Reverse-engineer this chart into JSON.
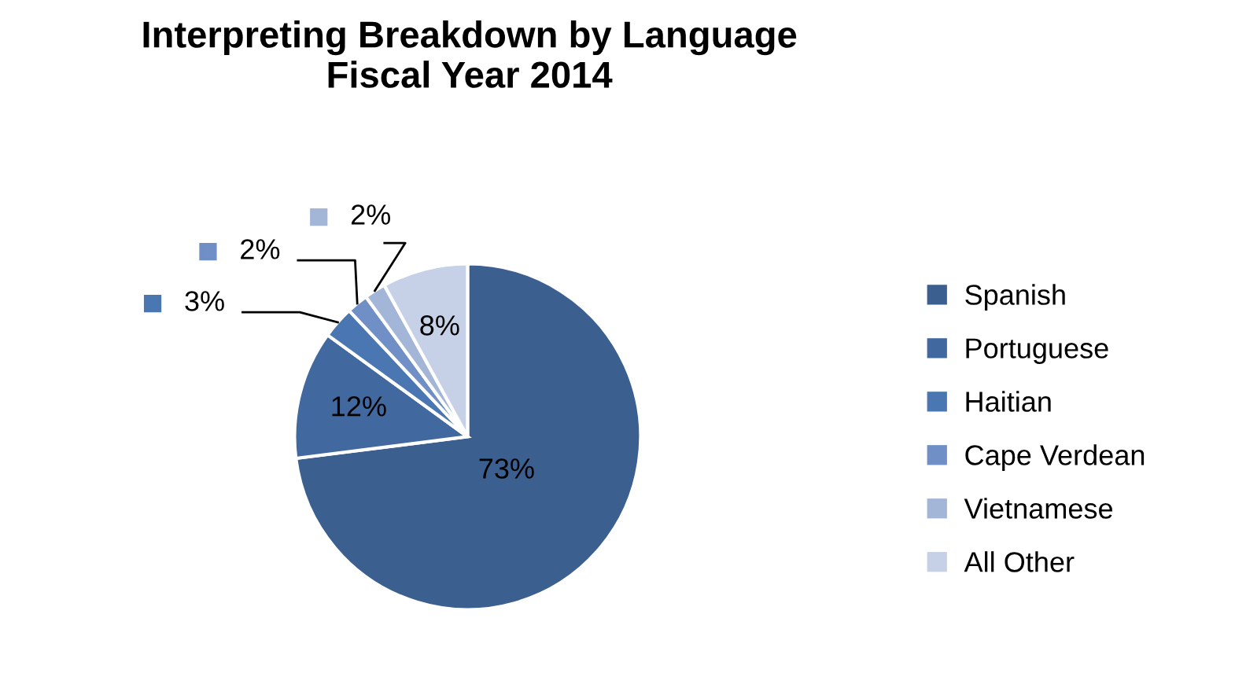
{
  "chart_data": {
    "type": "pie",
    "title": "Interpreting Breakdown by Language\nFiscal Year 2014",
    "categories": [
      "Spanish",
      "Portuguese",
      "Haitian",
      "Cape Verdean",
      "Vietnamese",
      "All Other"
    ],
    "values": [
      73,
      12,
      3,
      2,
      2,
      8
    ],
    "colors": [
      "#3b5f8f",
      "#4169a0",
      "#4a76b2",
      "#6f8fc6",
      "#a3b6d8",
      "#c6d1e7"
    ],
    "value_labels": [
      "73%",
      "12%",
      "3%",
      "2%",
      "2%",
      "8%"
    ],
    "legend": "right"
  }
}
